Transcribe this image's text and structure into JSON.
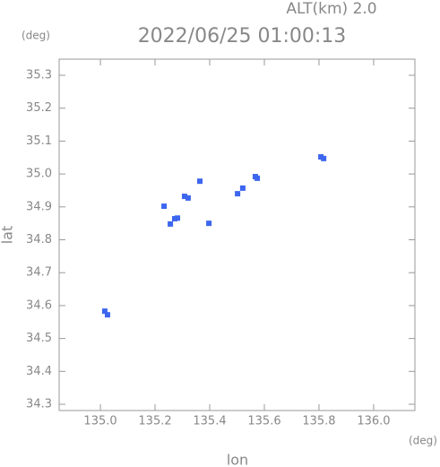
{
  "chart_data": {
    "type": "scatter",
    "title": "2022/06/25 01:00:13",
    "subtitle": "ALT(km) 2.0",
    "x_unit": "(deg)",
    "y_unit": "(deg)",
    "x_label": "lon",
    "y_label": "lat",
    "x": [
      135.016,
      135.026,
      135.233,
      135.272,
      135.282,
      135.256,
      135.308,
      135.321,
      135.364,
      135.397,
      135.502,
      135.521,
      135.567,
      135.574,
      135.807,
      135.817
    ],
    "values": [
      34.583,
      34.572,
      34.902,
      34.864,
      34.866,
      34.848,
      34.932,
      34.927,
      34.978,
      34.85,
      34.94,
      34.957,
      34.992,
      34.987,
      35.052,
      35.047
    ],
    "color": "#3d66ee",
    "xlim": [
      134.849,
      136.151
    ],
    "ylim": [
      34.281,
      35.349
    ],
    "xticks": [
      {
        "value": 135.0,
        "label": "135.0"
      },
      135.2,
      135.4,
      135.6,
      135.8,
      {
        "value": 136.0,
        "label": "136.0"
      }
    ],
    "yticks": [
      34.3,
      34.4,
      34.5,
      34.6,
      34.7,
      34.8,
      34.9,
      {
        "value": 35.0,
        "label": "35.0"
      },
      35.1,
      35.2,
      35.3
    ]
  }
}
